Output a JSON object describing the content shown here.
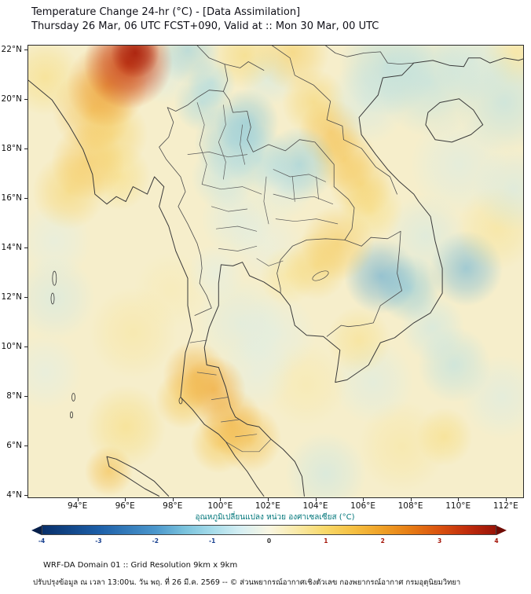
{
  "header": {
    "title_line1": "Temperature Change 24-hr (°C) - [Data Assimilation]",
    "title_line2": "Thursday 26 Mar, 06 UTC FCST+090, Valid at :: Mon 30 Mar, 00 UTC"
  },
  "map": {
    "lat_ticks": [
      {
        "v": 22,
        "label": "22°N"
      },
      {
        "v": 20,
        "label": "20°N"
      },
      {
        "v": 18,
        "label": "18°N"
      },
      {
        "v": 16,
        "label": "16°N"
      },
      {
        "v": 14,
        "label": "14°N"
      },
      {
        "v": 12,
        "label": "12°N"
      },
      {
        "v": 10,
        "label": "10°N"
      },
      {
        "v": 8,
        "label": "8°N"
      },
      {
        "v": 6,
        "label": "6°N"
      },
      {
        "v": 4,
        "label": "4°N"
      }
    ],
    "lon_ticks": [
      {
        "v": 94,
        "label": "94°E"
      },
      {
        "v": 96,
        "label": "96°E"
      },
      {
        "v": 98,
        "label": "98°E"
      },
      {
        "v": 100,
        "label": "100°E"
      },
      {
        "v": 102,
        "label": "102°E"
      },
      {
        "v": 104,
        "label": "104°E"
      },
      {
        "v": 106,
        "label": "106°E"
      },
      {
        "v": 108,
        "label": "108°E"
      },
      {
        "v": 110,
        "label": "110°E"
      },
      {
        "v": 112,
        "label": "112°E"
      }
    ]
  },
  "colorbar": {
    "label": "อุณหภูมิเปลี่ยนแปลง หน่วย องศาเซลเซียส (°C)",
    "ticks": [
      -4,
      -3,
      -2,
      -1,
      0,
      1,
      2,
      3,
      4
    ],
    "neg_color": "#173f8f",
    "pos_color": "#a51408",
    "zero_color": "#333333",
    "arrow_left": "#061f4a",
    "arrow_right": "#700b04"
  },
  "footer": {
    "line1": "WRF-DA Domain 01 :: Grid Resolution 9km x 9km",
    "line2": "ปรับปรุงข้อมูล ณ เวลา 13:00น. วัน พฤ. ที่ 26 มี.ค. 2569 -- © ส่วนพยากรณ์อากาศเชิงตัวเลข กองพยากรณ์อากาศ กรมอุตุนิยมวิทยา"
  },
  "chart_data": {
    "type": "heatmap",
    "title": "Temperature Change 24-hr (°C) - [Data Assimilation]",
    "units": "°C",
    "x_range": [
      91.9,
      112.7
    ],
    "y_range": [
      3.95,
      22.2
    ],
    "scale_min": -4,
    "scale_max": 4,
    "base_color": "#f6eecb",
    "colormap": [
      {
        "v": -4,
        "c": "#08306b"
      },
      {
        "v": -3,
        "c": "#1d5fa8"
      },
      {
        "v": -2,
        "c": "#4b97cc"
      },
      {
        "v": -1.5,
        "c": "#79c2dc"
      },
      {
        "v": -1,
        "c": "#a6dcea"
      },
      {
        "v": -0.5,
        "c": "#d6eff3"
      },
      {
        "v": 0,
        "c": "#f9f6e2"
      },
      {
        "v": 0.5,
        "c": "#f9e9a6"
      },
      {
        "v": 1,
        "c": "#f8d868"
      },
      {
        "v": 1.5,
        "c": "#f5bf41"
      },
      {
        "v": 2,
        "c": "#efa026"
      },
      {
        "v": 2.5,
        "c": "#e67b14"
      },
      {
        "v": 3,
        "c": "#da520f"
      },
      {
        "v": 3.5,
        "c": "#c02c0c"
      },
      {
        "v": 4,
        "c": "#9a1408"
      }
    ],
    "anomalies": [
      {
        "lon": 96.4,
        "lat": 21.9,
        "v": 3.8,
        "r": 0.6
      },
      {
        "lon": 96.1,
        "lat": 21.5,
        "v": 3.4,
        "r": 1.1
      },
      {
        "lon": 95.2,
        "lat": 20.6,
        "v": 2.2,
        "r": 1.0
      },
      {
        "lon": 94.6,
        "lat": 19.6,
        "v": 1.6,
        "r": 1.0
      },
      {
        "lon": 92.6,
        "lat": 20.9,
        "v": 1.0,
        "r": 0.9
      },
      {
        "lon": 95.4,
        "lat": 18.6,
        "v": 1.2,
        "r": 0.9
      },
      {
        "lon": 94.4,
        "lat": 17.5,
        "v": 1.5,
        "r": 0.9
      },
      {
        "lon": 93.6,
        "lat": 16.3,
        "v": 1.2,
        "r": 0.9
      },
      {
        "lon": 95.7,
        "lat": 16.9,
        "v": 1.0,
        "r": 0.8
      },
      {
        "lon": 98.6,
        "lat": 22.0,
        "v": -1.3,
        "r": 0.8
      },
      {
        "lon": 97.6,
        "lat": 21.0,
        "v": -0.6,
        "r": 0.7
      },
      {
        "lon": 99.6,
        "lat": 20.7,
        "v": -1.1,
        "r": 0.6
      },
      {
        "lon": 101.0,
        "lat": 21.8,
        "v": 1.1,
        "r": 0.8
      },
      {
        "lon": 103.0,
        "lat": 21.9,
        "v": 1.3,
        "r": 0.9
      },
      {
        "lon": 102.0,
        "lat": 20.9,
        "v": -0.7,
        "r": 0.7
      },
      {
        "lon": 99.2,
        "lat": 19.9,
        "v": -1.2,
        "r": 0.7
      },
      {
        "lon": 101.1,
        "lat": 19.1,
        "v": -1.5,
        "r": 0.8
      },
      {
        "lon": 100.4,
        "lat": 18.3,
        "v": -1.3,
        "r": 0.9
      },
      {
        "lon": 101.6,
        "lat": 17.6,
        "v": -1.1,
        "r": 0.8
      },
      {
        "lon": 100.1,
        "lat": 16.9,
        "v": -0.9,
        "r": 0.8
      },
      {
        "lon": 103.3,
        "lat": 17.4,
        "v": -1.4,
        "r": 0.9
      },
      {
        "lon": 102.6,
        "lat": 16.5,
        "v": -0.6,
        "r": 0.8
      },
      {
        "lon": 107.0,
        "lat": 21.4,
        "v": -1.1,
        "r": 1.2
      },
      {
        "lon": 108.8,
        "lat": 20.7,
        "v": -1.0,
        "r": 1.3
      },
      {
        "lon": 110.6,
        "lat": 21.6,
        "v": -0.8,
        "r": 1.0
      },
      {
        "lon": 111.9,
        "lat": 19.9,
        "v": -1.0,
        "r": 1.2
      },
      {
        "lon": 106.1,
        "lat": 19.9,
        "v": -0.7,
        "r": 1.0
      },
      {
        "lon": 110.0,
        "lat": 17.4,
        "v": -0.6,
        "r": 1.2
      },
      {
        "lon": 112.3,
        "lat": 16.4,
        "v": -0.7,
        "r": 1.0
      },
      {
        "lon": 103.9,
        "lat": 19.9,
        "v": 1.2,
        "r": 0.8
      },
      {
        "lon": 104.6,
        "lat": 18.7,
        "v": 1.6,
        "r": 0.8
      },
      {
        "lon": 105.2,
        "lat": 17.6,
        "v": 1.5,
        "r": 0.8
      },
      {
        "lon": 105.9,
        "lat": 16.6,
        "v": 1.3,
        "r": 0.8
      },
      {
        "lon": 106.3,
        "lat": 15.6,
        "v": 1.0,
        "r": 0.8
      },
      {
        "lon": 100.7,
        "lat": 15.2,
        "v": -0.6,
        "r": 0.9
      },
      {
        "lon": 104.9,
        "lat": 14.2,
        "v": 1.4,
        "r": 0.9
      },
      {
        "lon": 108.6,
        "lat": 14.5,
        "v": -0.7,
        "r": 1.0
      },
      {
        "lon": 111.6,
        "lat": 14.8,
        "v": 0.8,
        "r": 1.0
      },
      {
        "lon": 106.7,
        "lat": 12.9,
        "v": -1.8,
        "r": 0.9
      },
      {
        "lon": 107.9,
        "lat": 12.4,
        "v": -1.5,
        "r": 0.8
      },
      {
        "lon": 110.3,
        "lat": 13.2,
        "v": -1.7,
        "r": 0.9
      },
      {
        "lon": 104.0,
        "lat": 13.3,
        "v": 1.2,
        "r": 0.8
      },
      {
        "lon": 102.8,
        "lat": 12.9,
        "v": 0.8,
        "r": 0.7
      },
      {
        "lon": 99.8,
        "lat": 13.0,
        "v": -0.5,
        "r": 0.7
      },
      {
        "lon": 100.8,
        "lat": 11.0,
        "v": -0.6,
        "r": 1.1
      },
      {
        "lon": 102.3,
        "lat": 10.5,
        "v": -0.5,
        "r": 1.0
      },
      {
        "lon": 96.3,
        "lat": 10.6,
        "v": 0.7,
        "r": 1.1
      },
      {
        "lon": 93.0,
        "lat": 12.0,
        "v": -0.7,
        "r": 1.0
      },
      {
        "lon": 92.6,
        "lat": 9.0,
        "v": -0.5,
        "r": 0.9
      },
      {
        "lon": 105.8,
        "lat": 10.3,
        "v": 0.9,
        "r": 0.8
      },
      {
        "lon": 108.9,
        "lat": 10.8,
        "v": -0.8,
        "r": 0.8
      },
      {
        "lon": 98.9,
        "lat": 8.9,
        "v": 1.8,
        "r": 0.8
      },
      {
        "lon": 99.7,
        "lat": 8.3,
        "v": 2.0,
        "r": 0.8
      },
      {
        "lon": 98.4,
        "lat": 7.9,
        "v": 1.4,
        "r": 0.7
      },
      {
        "lon": 101.5,
        "lat": 9.0,
        "v": -0.5,
        "r": 0.9
      },
      {
        "lon": 103.6,
        "lat": 8.5,
        "v": 0.6,
        "r": 1.0
      },
      {
        "lon": 106.4,
        "lat": 8.6,
        "v": -0.6,
        "r": 1.0
      },
      {
        "lon": 109.8,
        "lat": 9.3,
        "v": -1.0,
        "r": 0.9
      },
      {
        "lon": 100.4,
        "lat": 7.0,
        "v": 1.8,
        "r": 0.8
      },
      {
        "lon": 101.2,
        "lat": 6.3,
        "v": 1.6,
        "r": 0.8
      },
      {
        "lon": 99.9,
        "lat": 6.1,
        "v": 1.4,
        "r": 0.7
      },
      {
        "lon": 96.0,
        "lat": 6.8,
        "v": 1.0,
        "r": 1.0
      },
      {
        "lon": 95.3,
        "lat": 5.0,
        "v": 1.6,
        "r": 0.6
      },
      {
        "lon": 104.4,
        "lat": 4.9,
        "v": -0.8,
        "r": 1.0
      },
      {
        "lon": 107.6,
        "lat": 6.0,
        "v": 0.7,
        "r": 1.1
      },
      {
        "lon": 109.4,
        "lat": 6.4,
        "v": 1.0,
        "r": 0.7
      },
      {
        "lon": 111.8,
        "lat": 8.0,
        "v": -0.6,
        "r": 1.0
      },
      {
        "lon": 112.4,
        "lat": 21.9,
        "v": 0.8,
        "r": 0.8
      },
      {
        "lon": 93.0,
        "lat": 14.3,
        "v": -0.5,
        "r": 0.9
      },
      {
        "lon": 97.9,
        "lat": 12.3,
        "v": 0.5,
        "r": 0.9
      },
      {
        "lon": 101.9,
        "lat": 14.2,
        "v": -0.4,
        "r": 0.9
      }
    ]
  }
}
